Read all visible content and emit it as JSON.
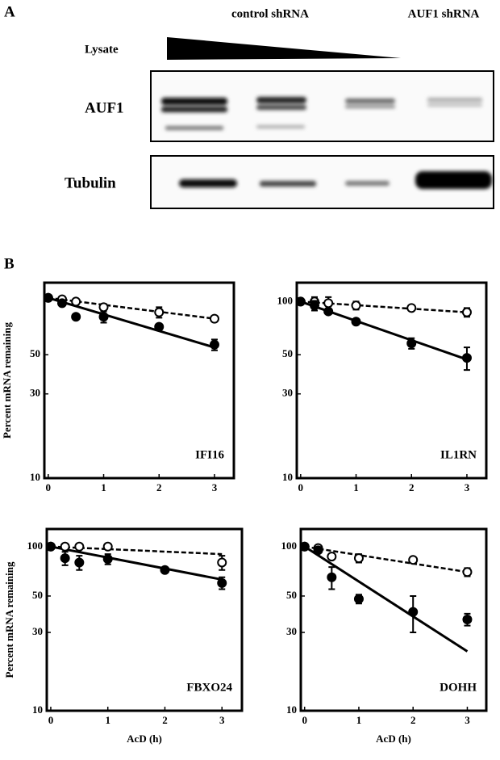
{
  "figure": {
    "panel_a": "A",
    "panel_b": "B",
    "conditions": [
      "control shRNA",
      "AUF1 shRNA"
    ],
    "lysate": "Lysate",
    "blots": [
      "AUF1",
      "Tubulin"
    ]
  },
  "chart_data": [
    {
      "type": "line",
      "title": "IFI16",
      "ylabel": "Percent mRNA remaining",
      "yscale": "log",
      "x": [
        0,
        0.25,
        0.5,
        1,
        2,
        3
      ],
      "xlim": [
        -0.07,
        3.35
      ],
      "xticks": [
        0,
        1,
        2,
        3
      ],
      "ylim": [
        10,
        128
      ],
      "yticks": [
        10,
        30,
        50
      ],
      "fit_x": [
        0,
        3
      ],
      "series": [
        {
          "color": "#000000",
          "marker": "open",
          "line_style": "dashed",
          "values": [
            105,
            103,
            100,
            93,
            87,
            80
          ],
          "errors": [
            2,
            2,
            3,
            4,
            6,
            3
          ],
          "fit": [
            105,
            80
          ]
        },
        {
          "color": "#000000",
          "marker": "filled",
          "line_style": "solid",
          "values": [
            105,
            98,
            82,
            82,
            72,
            57
          ],
          "errors": [
            2,
            3,
            2,
            6,
            2,
            4
          ],
          "fit": [
            105,
            55
          ]
        }
      ]
    },
    {
      "type": "line",
      "title": "IL1RN",
      "yscale": "log",
      "x": [
        0,
        0.25,
        0.5,
        1,
        2,
        3
      ],
      "xlim": [
        -0.07,
        3.35
      ],
      "xticks": [
        0,
        1,
        2,
        3
      ],
      "ylim": [
        10,
        128
      ],
      "yticks": [
        10,
        30,
        50,
        100
      ],
      "fit_x": [
        0,
        3
      ],
      "series": [
        {
          "color": "#000000",
          "marker": "open",
          "line_style": "dashed",
          "values": [
            100,
            100,
            98,
            95,
            92,
            87
          ],
          "errors": [
            2,
            6,
            8,
            5,
            2,
            5
          ],
          "fit": [
            100,
            87
          ]
        },
        {
          "color": "#000000",
          "marker": "filled",
          "line_style": "solid",
          "values": [
            100,
            95,
            88,
            77,
            58,
            48
          ],
          "errors": [
            2,
            6,
            3,
            2,
            4,
            7
          ],
          "fit": [
            100,
            47
          ]
        }
      ]
    },
    {
      "type": "line",
      "title": "FBXO24",
      "ylabel": "Percent mRNA remaining",
      "xlabel": "AcD (h)",
      "yscale": "log",
      "x": [
        0,
        0.25,
        0.5,
        1,
        2,
        3
      ],
      "xlim": [
        -0.07,
        3.35
      ],
      "xticks": [
        0,
        1,
        2,
        3
      ],
      "ylim": [
        10,
        128
      ],
      "yticks": [
        10,
        30,
        50,
        100
      ],
      "fit_x": [
        0,
        3
      ],
      "series": [
        {
          "color": "#000000",
          "marker": "open",
          "line_style": "dashed",
          "values": [
            100,
            100,
            100,
            100,
            null,
            80
          ],
          "errors": [
            2,
            2,
            2,
            2,
            null,
            8
          ],
          "fit": [
            100,
            90
          ]
        },
        {
          "color": "#000000",
          "marker": "filled",
          "line_style": "solid",
          "values": [
            100,
            85,
            80,
            84,
            72,
            60
          ],
          "errors": [
            2,
            8,
            8,
            6,
            2,
            5
          ],
          "fit": [
            100,
            63
          ]
        }
      ]
    },
    {
      "type": "line",
      "title": "DOHH",
      "xlabel": "AcD (h)",
      "yscale": "log",
      "x": [
        0,
        0.25,
        0.5,
        1,
        2,
        3
      ],
      "xlim": [
        -0.07,
        3.35
      ],
      "xticks": [
        0,
        1,
        2,
        3
      ],
      "ylim": [
        10,
        128
      ],
      "yticks": [
        10,
        30,
        50,
        100
      ],
      "fit_x": [
        0,
        3
      ],
      "series": [
        {
          "color": "#000000",
          "marker": "open",
          "line_style": "dashed",
          "values": [
            100,
            98,
            87,
            85,
            83,
            70
          ],
          "errors": [
            2,
            3,
            3,
            5,
            3,
            4
          ],
          "fit": [
            100,
            70
          ]
        },
        {
          "color": "#000000",
          "marker": "filled",
          "line_style": "solid",
          "values": [
            100,
            95,
            65,
            48,
            40,
            36
          ],
          "errors": [
            2,
            3,
            10,
            3,
            10,
            3
          ],
          "fit": [
            100,
            23
          ]
        }
      ]
    }
  ]
}
